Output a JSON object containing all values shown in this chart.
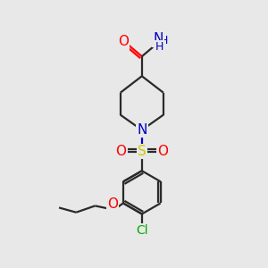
{
  "bg_color": "#e8e8e8",
  "bond_color": "#2a2a2a",
  "atom_colors": {
    "O": "#ff0000",
    "N_amide": "#0000cc",
    "N_pip": "#0000cc",
    "S": "#cccc00",
    "Cl": "#00aa00",
    "C": "#2a2a2a"
  },
  "fig_w": 3.0,
  "fig_h": 3.0,
  "dpi": 100,
  "xlim": [
    0,
    10
  ],
  "ylim": [
    0,
    10
  ],
  "bond_width": 1.6,
  "font_size": 10
}
